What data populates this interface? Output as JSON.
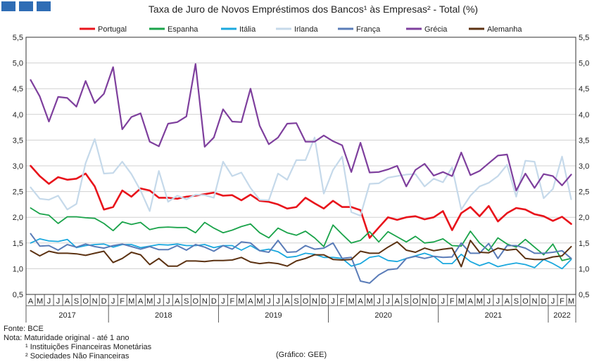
{
  "colors": {
    "logo": "#2f6db5",
    "grid": "#d0d0d0",
    "axis": "#333333"
  },
  "chart_data": {
    "type": "line",
    "title": "Taxa de Juro de Novos Empréstimos dos Bancos¹ às Empresas² - Total (%)",
    "ylim": [
      0.5,
      5.5
    ],
    "yticks": [
      "0,5",
      "1,0",
      "1,5",
      "2,0",
      "2,5",
      "3,0",
      "3,5",
      "4,0",
      "4,5",
      "5,0",
      "5,5"
    ],
    "month_labels": [
      "A",
      "M",
      "J",
      "J",
      "A",
      "S",
      "O",
      "N",
      "D",
      "J",
      "F",
      "M",
      "A",
      "M",
      "J",
      "J",
      "A",
      "S",
      "O",
      "N",
      "D",
      "J",
      "F",
      "M",
      "A",
      "M",
      "J",
      "J",
      "A",
      "S",
      "O",
      "N",
      "D",
      "J",
      "F",
      "M",
      "A",
      "M",
      "J",
      "J",
      "A",
      "S",
      "O",
      "N",
      "D",
      "J",
      "F",
      "M",
      "A",
      "M",
      "J",
      "J",
      "A",
      "S",
      "O",
      "N",
      "D",
      "J",
      "F",
      "M"
    ],
    "years": [
      {
        "label": "2017",
        "start": 0,
        "end": 8
      },
      {
        "label": "2018",
        "start": 9,
        "end": 20
      },
      {
        "label": "2019",
        "start": 21,
        "end": 32
      },
      {
        "label": "2020",
        "start": 33,
        "end": 44
      },
      {
        "label": "2021",
        "start": 45,
        "end": 56
      },
      {
        "label": "2022",
        "start": 57,
        "end": 59
      }
    ],
    "series": [
      {
        "name": "Portugal",
        "color": "#e8131b",
        "width": 2.6,
        "values": [
          3.0,
          2.8,
          2.65,
          2.78,
          2.73,
          2.75,
          2.85,
          2.6,
          2.15,
          2.2,
          2.52,
          2.4,
          2.56,
          2.52,
          2.38,
          2.38,
          2.36,
          2.4,
          2.42,
          2.45,
          2.48,
          2.42,
          2.43,
          2.33,
          2.44,
          2.32,
          2.3,
          2.25,
          2.17,
          2.2,
          2.38,
          2.27,
          2.17,
          2.32,
          2.2,
          2.2,
          2.14,
          1.6,
          1.8,
          2.0,
          1.95,
          2.0,
          2.02,
          1.96,
          2.0,
          2.12,
          1.75,
          2.08,
          2.2,
          2.02,
          2.22,
          1.92,
          2.08,
          2.18,
          2.15,
          2.06,
          2.02,
          1.93,
          2.01,
          1.87
        ]
      },
      {
        "name": "Espanha",
        "color": "#1aa34a",
        "width": 1.8,
        "values": [
          2.18,
          2.07,
          2.04,
          1.88,
          2.01,
          2.01,
          1.99,
          1.98,
          1.88,
          1.74,
          1.91,
          1.86,
          1.9,
          1.76,
          1.8,
          1.81,
          1.8,
          1.8,
          1.7,
          1.9,
          1.79,
          1.7,
          1.75,
          1.82,
          1.87,
          1.7,
          1.6,
          1.79,
          1.7,
          1.65,
          1.73,
          1.6,
          1.43,
          1.85,
          1.67,
          1.5,
          1.55,
          1.72,
          1.52,
          1.72,
          1.62,
          1.52,
          1.63,
          1.5,
          1.52,
          1.58,
          1.45,
          1.44,
          1.73,
          1.5,
          1.35,
          1.6,
          1.48,
          1.42,
          1.57,
          1.42,
          1.27,
          1.48,
          1.16,
          1.2
        ]
      },
      {
        "name": "Itália",
        "color": "#1ba8de",
        "width": 1.8,
        "values": [
          1.5,
          1.58,
          1.54,
          1.53,
          1.57,
          1.41,
          1.45,
          1.47,
          1.48,
          1.42,
          1.47,
          1.47,
          1.41,
          1.44,
          1.47,
          1.46,
          1.48,
          1.45,
          1.45,
          1.47,
          1.41,
          1.45,
          1.45,
          1.36,
          1.45,
          1.35,
          1.38,
          1.33,
          1.22,
          1.24,
          1.3,
          1.28,
          1.22,
          1.22,
          1.2,
          1.05,
          1.1,
          1.22,
          1.25,
          1.16,
          1.14,
          1.2,
          1.25,
          1.3,
          1.24,
          1.1,
          1.1,
          1.28,
          1.14,
          1.06,
          1.12,
          1.04,
          1.08,
          1.11,
          1.08,
          1.02,
          1.18,
          1.1,
          1.0,
          1.18
        ]
      },
      {
        "name": "Irlanda",
        "color": "#c5d9ea",
        "width": 2.2,
        "values": [
          2.58,
          2.36,
          2.34,
          2.42,
          2.15,
          2.26,
          3.05,
          3.52,
          2.85,
          2.86,
          3.08,
          2.84,
          2.52,
          2.12,
          2.9,
          2.3,
          2.42,
          2.35,
          2.44,
          2.43,
          2.38,
          3.08,
          2.8,
          2.87,
          2.57,
          2.34,
          2.33,
          2.85,
          2.73,
          3.11,
          3.11,
          3.55,
          2.46,
          2.92,
          3.18,
          2.1,
          2.03,
          2.65,
          2.66,
          2.77,
          2.8,
          2.83,
          2.84,
          2.6,
          2.75,
          2.68,
          2.97,
          2.15,
          2.42,
          2.6,
          2.67,
          2.8,
          3.02,
          2.4,
          3.1,
          3.08,
          2.37,
          2.55,
          3.18,
          2.35
        ]
      },
      {
        "name": "França",
        "color": "#5a7cb8",
        "width": 2.0,
        "values": [
          1.68,
          1.44,
          1.45,
          1.36,
          1.47,
          1.42,
          1.48,
          1.43,
          1.4,
          1.45,
          1.48,
          1.43,
          1.38,
          1.43,
          1.37,
          1.37,
          1.45,
          1.36,
          1.47,
          1.42,
          1.34,
          1.45,
          1.38,
          1.52,
          1.5,
          1.35,
          1.32,
          1.55,
          1.32,
          1.33,
          1.45,
          1.38,
          1.4,
          1.5,
          1.2,
          1.22,
          0.76,
          0.72,
          0.88,
          0.98,
          1.0,
          1.2,
          1.24,
          1.2,
          1.24,
          1.22,
          1.23,
          1.5,
          1.3,
          1.3,
          1.49,
          1.2,
          1.45,
          1.45,
          1.4,
          1.3,
          1.3,
          1.32,
          1.35,
          1.2
        ]
      },
      {
        "name": "Grécia",
        "color": "#7e3f9d",
        "width": 2.2,
        "values": [
          4.67,
          4.35,
          3.86,
          4.34,
          4.32,
          4.15,
          4.65,
          4.22,
          4.4,
          4.92,
          3.71,
          3.95,
          4.02,
          3.47,
          3.38,
          3.82,
          3.85,
          3.96,
          4.98,
          3.37,
          3.55,
          4.1,
          3.86,
          3.85,
          4.5,
          3.78,
          3.42,
          3.55,
          3.82,
          3.83,
          3.47,
          3.47,
          3.59,
          3.48,
          3.4,
          2.88,
          3.45,
          2.87,
          2.88,
          2.93,
          3.0,
          2.6,
          2.92,
          3.04,
          2.81,
          2.88,
          2.8,
          3.26,
          2.82,
          2.9,
          3.05,
          3.2,
          3.22,
          2.52,
          2.85,
          2.57,
          2.84,
          2.8,
          2.62,
          2.83
        ]
      },
      {
        "name": "Alemanha",
        "color": "#5c3212",
        "width": 2.0,
        "values": [
          1.35,
          1.25,
          1.34,
          1.3,
          1.3,
          1.29,
          1.26,
          1.3,
          1.34,
          1.12,
          1.2,
          1.32,
          1.27,
          1.08,
          1.2,
          1.05,
          1.05,
          1.15,
          1.15,
          1.14,
          1.16,
          1.16,
          1.17,
          1.22,
          1.13,
          1.1,
          1.12,
          1.1,
          1.05,
          1.15,
          1.2,
          1.27,
          1.27,
          1.18,
          1.17,
          1.18,
          1.34,
          1.3,
          1.3,
          1.42,
          1.52,
          1.36,
          1.32,
          1.4,
          1.35,
          1.38,
          1.4,
          1.04,
          1.55,
          1.32,
          1.31,
          1.4,
          1.36,
          1.38,
          1.2,
          1.18,
          1.18,
          1.23,
          1.25,
          1.43
        ]
      }
    ]
  },
  "footnotes": {
    "source": "Fonte: BCE",
    "note": "Nota: Maturidade original - até 1 ano",
    "note1": "¹ Instituições Financeiras Monetárias",
    "note2": "² Sociedades Não Financeiras",
    "credit": "(Gráfico: GEE)"
  }
}
